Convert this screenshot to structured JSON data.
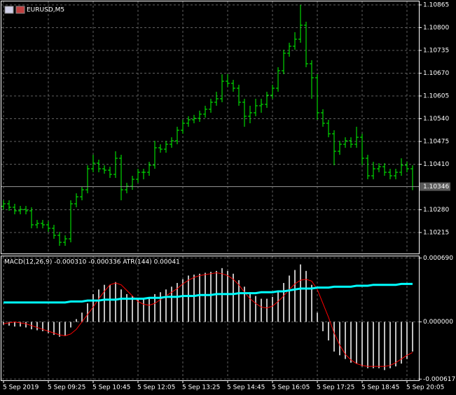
{
  "chart_data": [
    {
      "type": "ohlc",
      "title": "EURUSD,M5",
      "color": "#00ff00",
      "grid": true,
      "categories": [
        "5 Sep 2019",
        null,
        null,
        null,
        null,
        null,
        null,
        null,
        "5 Sep 09:25",
        null,
        null,
        null,
        null,
        null,
        null,
        null,
        "5 Sep 10:45",
        null,
        null,
        null,
        null,
        null,
        null,
        null,
        "5 Sep 12:05",
        null,
        null,
        null,
        null,
        null,
        null,
        null,
        "5 Sep 13:25",
        null,
        null,
        null,
        null,
        null,
        null,
        null,
        "5 Sep 14:45",
        null,
        null,
        null,
        null,
        null,
        null,
        null,
        "5 Sep 16:05",
        null,
        null,
        null,
        null,
        null,
        null,
        null,
        "5 Sep 17:25",
        null,
        null,
        null,
        null,
        null,
        null,
        null,
        "5 Sep 18:45",
        null,
        null,
        null,
        null,
        null,
        null,
        null,
        "5 Sep 20:05",
        null
      ],
      "ohlc": [
        [
          1.1029,
          1.10307,
          1.1028,
          1.10297
        ],
        [
          1.10297,
          1.10307,
          1.10277,
          1.10287
        ],
        [
          1.10287,
          1.10297,
          1.10267,
          1.10277
        ],
        [
          1.10277,
          1.10291,
          1.10267,
          1.10281
        ],
        [
          1.10281,
          1.10291,
          1.10267,
          1.10277
        ],
        [
          1.10277,
          1.10287,
          1.10227,
          1.10237
        ],
        [
          1.10237,
          1.10251,
          1.10227,
          1.10241
        ],
        [
          1.10241,
          1.10251,
          1.10227,
          1.10237
        ],
        [
          1.10237,
          1.10247,
          1.10217,
          1.10227
        ],
        [
          1.10227,
          1.10237,
          1.10197,
          1.10207
        ],
        [
          1.10207,
          1.10217,
          1.10177,
          1.10187
        ],
        [
          1.10187,
          1.10207,
          1.10177,
          1.10197
        ],
        [
          1.10197,
          1.10307,
          1.10187,
          1.10297
        ],
        [
          1.10297,
          1.10327,
          1.10287,
          1.10317
        ],
        [
          1.10317,
          1.10347,
          1.10307,
          1.10337
        ],
        [
          1.10337,
          1.10407,
          1.10327,
          1.10397
        ],
        [
          1.10397,
          1.10437,
          1.10387,
          1.10413
        ],
        [
          1.10413,
          1.10423,
          1.10387,
          1.10397
        ],
        [
          1.10397,
          1.10407,
          1.10383,
          1.10393
        ],
        [
          1.10393,
          1.10403,
          1.10371,
          1.10381
        ],
        [
          1.10381,
          1.10447,
          1.10371,
          1.10427
        ],
        [
          1.10427,
          1.10437,
          1.10307,
          1.10337
        ],
        [
          1.10337,
          1.10357,
          1.10327,
          1.10347
        ],
        [
          1.10347,
          1.10377,
          1.10337,
          1.10367
        ],
        [
          1.10367,
          1.10397,
          1.10357,
          1.10387
        ],
        [
          1.10387,
          1.10397,
          1.10367,
          1.10387
        ],
        [
          1.10387,
          1.10417,
          1.10377,
          1.10407
        ],
        [
          1.10407,
          1.10477,
          1.10397,
          1.10457
        ],
        [
          1.10457,
          1.10467,
          1.10443,
          1.10453
        ],
        [
          1.10453,
          1.10477,
          1.10443,
          1.10467
        ],
        [
          1.10467,
          1.10487,
          1.10457,
          1.10477
        ],
        [
          1.10477,
          1.10517,
          1.10467,
          1.10507
        ],
        [
          1.10507,
          1.10537,
          1.10497,
          1.10527
        ],
        [
          1.10527,
          1.10547,
          1.10517,
          1.10537
        ],
        [
          1.10537,
          1.10551,
          1.10527,
          1.10541
        ],
        [
          1.10541,
          1.10563,
          1.10531,
          1.10553
        ],
        [
          1.10553,
          1.10577,
          1.10543,
          1.10567
        ],
        [
          1.10567,
          1.10597,
          1.10557,
          1.10587
        ],
        [
          1.10587,
          1.10617,
          1.10577,
          1.10597
        ],
        [
          1.10597,
          1.10667,
          1.10587,
          1.10647
        ],
        [
          1.10647,
          1.10667,
          1.10631,
          1.10641
        ],
        [
          1.10641,
          1.10651,
          1.10617,
          1.10627
        ],
        [
          1.10627,
          1.10637,
          1.10577,
          1.10587
        ],
        [
          1.10587,
          1.10597,
          1.10517,
          1.10547
        ],
        [
          1.10547,
          1.10577,
          1.10527,
          1.10557
        ],
        [
          1.10557,
          1.10597,
          1.10547,
          1.10577
        ],
        [
          1.10577,
          1.10597,
          1.10557,
          1.10581
        ],
        [
          1.10581,
          1.10617,
          1.10571,
          1.10607
        ],
        [
          1.10607,
          1.10637,
          1.10597,
          1.10627
        ],
        [
          1.10627,
          1.10687,
          1.10617,
          1.10677
        ],
        [
          1.10677,
          1.10737,
          1.10667,
          1.10727
        ],
        [
          1.10727,
          1.10757,
          1.10717,
          1.10747
        ],
        [
          1.10747,
          1.10787,
          1.10737,
          1.10767
        ],
        [
          1.10767,
          1.10865,
          1.10757,
          1.10807
        ],
        [
          1.10807,
          1.10817,
          1.10687,
          1.10697
        ],
        [
          1.10697,
          1.10707,
          1.10597,
          1.10657
        ],
        [
          1.10657,
          1.10667,
          1.10537,
          1.10557
        ],
        [
          1.10557,
          1.10567,
          1.10517,
          1.10527
        ],
        [
          1.10527,
          1.10537,
          1.10487,
          1.10497
        ],
        [
          1.10497,
          1.10507,
          1.10407,
          1.10447
        ],
        [
          1.10447,
          1.10477,
          1.10437,
          1.10467
        ],
        [
          1.10467,
          1.10487,
          1.10457,
          1.10477
        ],
        [
          1.10477,
          1.10487,
          1.10457,
          1.10467
        ],
        [
          1.10467,
          1.10517,
          1.10457,
          1.10487
        ],
        [
          1.10487,
          1.10497,
          1.10407,
          1.10427
        ],
        [
          1.10427,
          1.10437,
          1.10367,
          1.10377
        ],
        [
          1.10377,
          1.10417,
          1.10367,
          1.10397
        ],
        [
          1.10397,
          1.10413,
          1.10387,
          1.10403
        ],
        [
          1.10403,
          1.10413,
          1.10377,
          1.10387
        ],
        [
          1.10387,
          1.10397,
          1.10367,
          1.10377
        ],
        [
          1.10377,
          1.10397,
          1.10367,
          1.10387
        ],
        [
          1.10387,
          1.10427,
          1.10377,
          1.10407
        ],
        [
          1.10407,
          1.10417,
          1.10387,
          1.10397
        ],
        [
          1.10397,
          1.10407,
          1.10336,
          1.10346
        ]
      ],
      "ylim": [
        1.10155,
        1.10877
      ],
      "yticks": [
        1.10865,
        {
          "value": 1.108,
          "label": "1.10800"
        },
        1.10735,
        {
          "value": 1.1067,
          "label": "1.10670"
        },
        1.10605,
        {
          "value": 1.1054,
          "label": "1.10540"
        },
        1.10475,
        {
          "value": 1.1041,
          "label": "1.10410"
        },
        {
          "value": 1.1028,
          "label": "1.10280"
        },
        1.10215
      ],
      "last_price": 1.10346
    },
    {
      "type": "macd",
      "title": "MACD(12,26,9) -0.000310 -0.000336 ATR(144) 0.00041",
      "grid": true,
      "ylim": [
        -0.00063,
        0.000715
      ],
      "yticks": [
        {
          "value": 0.00069,
          "label": "0.000690"
        },
        {
          "value": 0,
          "label": "0.000000"
        },
        {
          "value": -0.000617,
          "label": "-0.000617"
        }
      ],
      "series": [
        {
          "type": "histogram",
          "color": "#c0c0c0",
          "values": [
            -3e-05,
            -4e-05,
            -5e-05,
            -5e-05,
            -6e-05,
            -8e-05,
            -9e-05,
            -0.0001,
            -0.00012,
            -0.00014,
            -0.00016,
            -0.00015,
            -6e-05,
            3e-05,
            0.0001,
            0.0002,
            0.0003,
            0.00035,
            0.0004,
            0.0004,
            0.00043,
            0.00035,
            0.0003,
            0.00028,
            0.00025,
            0.00024,
            0.00026,
            0.0003,
            0.00032,
            0.00035,
            0.00038,
            0.00042,
            0.00046,
            0.0005,
            0.00051,
            0.00052,
            0.00053,
            0.00054,
            0.00055,
            0.00058,
            0.00055,
            0.00052,
            0.00045,
            0.00038,
            0.00032,
            0.00028,
            0.00025,
            0.00025,
            0.00027,
            0.00033,
            0.00042,
            0.0005,
            0.00056,
            0.00062,
            0.00055,
            0.0004,
            0.0001,
            -0.0001,
            -0.0002,
            -0.00032,
            -0.00036,
            -0.0004,
            -0.00044,
            -0.00045,
            -0.00048,
            -0.0005,
            -0.0005,
            -0.0005,
            -0.00052,
            -0.0005,
            -0.00048,
            -0.00045,
            -0.0004,
            -0.00032
          ]
        },
        {
          "type": "line",
          "color": "#ff0000",
          "values": [
            -2e-05,
            -1e-05,
            0,
            -1e-05,
            -2e-05,
            -4e-05,
            -6e-05,
            -8e-05,
            -0.0001,
            -0.00012,
            -0.00014,
            -0.00015,
            -0.00013,
            -8e-05,
            0,
            8e-05,
            0.00016,
            0.00025,
            0.00033,
            0.0004,
            0.00042,
            0.0004,
            0.00034,
            0.00028,
            0.00022,
            0.00019,
            0.00018,
            0.0002,
            0.00024,
            0.00028,
            0.00032,
            0.00036,
            0.00041,
            0.00045,
            0.00048,
            0.0005,
            0.00051,
            0.00052,
            0.00053,
            0.00052,
            0.0005,
            0.00046,
            0.0004,
            0.00032,
            0.00025,
            0.0002,
            0.00016,
            0.00015,
            0.00017,
            0.00022,
            0.00028,
            0.00035,
            0.00041,
            0.00045,
            0.00046,
            0.00044,
            0.00035,
            0.0002,
            5e-05,
            -0.00012,
            -0.00025,
            -0.00035,
            -0.00041,
            -0.00045,
            -0.00047,
            -0.00048,
            -0.00048,
            -0.00048,
            -0.00048,
            -0.00047,
            -0.00044,
            -0.0004,
            -0.00036,
            -0.00033
          ]
        },
        {
          "type": "line",
          "color": "#00ffff",
          "width": 3,
          "values": [
            0.00021,
            0.00021,
            0.00021,
            0.00021,
            0.00021,
            0.00021,
            0.00021,
            0.00021,
            0.00021,
            0.00021,
            0.00021,
            0.00021,
            0.00022,
            0.00022,
            0.00022,
            0.00023,
            0.00023,
            0.00023,
            0.00024,
            0.00024,
            0.00024,
            0.00025,
            0.00025,
            0.00025,
            0.00025,
            0.00025,
            0.00026,
            0.00026,
            0.00026,
            0.00027,
            0.00027,
            0.00027,
            0.00028,
            0.00028,
            0.00028,
            0.00029,
            0.00029,
            0.00029,
            0.0003,
            0.0003,
            0.0003,
            0.0003,
            0.00031,
            0.00031,
            0.00031,
            0.00031,
            0.00032,
            0.00032,
            0.00032,
            0.00033,
            0.00033,
            0.00034,
            0.00035,
            0.00036,
            0.00036,
            0.00036,
            0.00037,
            0.00037,
            0.00037,
            0.00038,
            0.00038,
            0.00038,
            0.00038,
            0.00039,
            0.00039,
            0.00039,
            0.0004,
            0.0004,
            0.0004,
            0.0004,
            0.0004,
            0.00041,
            0.00041,
            0.00041
          ]
        }
      ]
    }
  ]
}
